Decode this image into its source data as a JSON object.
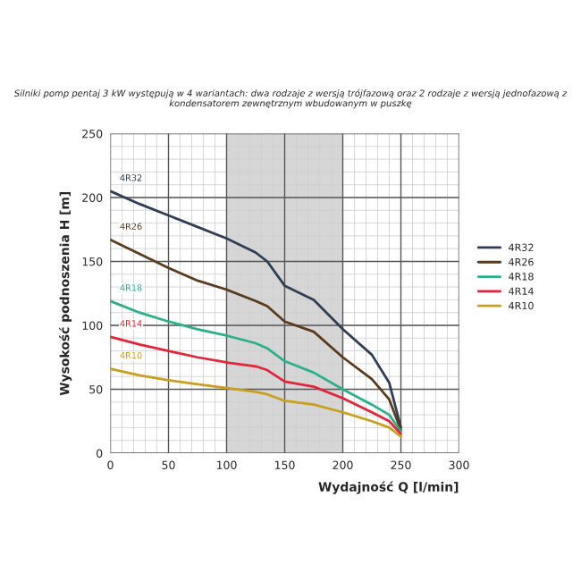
{
  "chart_data": {
    "type": "line",
    "title": "Silniki pomp pentaj 3 kW występują w 4 wariantach: dwa rodzaje z wersją trójfazową oraz 2 rodzaje z wersją jednofazową z kondensatorem zewnętrznym wbudowanym w puszkę",
    "xlabel": "Wydajność Q [l/min]",
    "ylabel": "Wysokość podnoszenia H [m]",
    "x": [
      0,
      25,
      50,
      75,
      100,
      125,
      135,
      150,
      175,
      200,
      225,
      240,
      250
    ],
    "series": [
      {
        "name": "4R32",
        "color": "#2f3e55",
        "values": [
          205,
          195,
          186,
          177,
          168,
          157,
          150,
          131,
          120,
          97,
          77,
          55,
          20
        ]
      },
      {
        "name": "4R26",
        "color": "#5a3b1e",
        "values": [
          167,
          156,
          145,
          135,
          128,
          119,
          115,
          103,
          95,
          75,
          58,
          42,
          18
        ]
      },
      {
        "name": "4R18",
        "color": "#2bb08a",
        "values": [
          119,
          110,
          103,
          97,
          92,
          86,
          82,
          72,
          63,
          50,
          38,
          30,
          17
        ]
      },
      {
        "name": "4R14",
        "color": "#e0263a",
        "values": [
          91,
          85,
          80,
          75,
          71,
          68,
          65,
          56,
          52,
          43,
          32,
          25,
          15
        ]
      },
      {
        "name": "4R10",
        "color": "#c8a020",
        "values": [
          66,
          61,
          57,
          54,
          51,
          48,
          46,
          41,
          38,
          32,
          25,
          20,
          13
        ]
      }
    ],
    "xlim": [
      0,
      300
    ],
    "xticks": [
      0,
      50,
      100,
      150,
      200,
      250,
      300
    ],
    "ylim": [
      0,
      250
    ],
    "yticks": [
      0,
      50,
      100,
      150,
      200,
      250
    ],
    "bands": [
      {
        "axis": "x",
        "from": 100,
        "to": 200,
        "color": "#d6d6d6"
      }
    ],
    "grid": true,
    "legend": "right",
    "marker": "none",
    "line_style": "solid"
  }
}
